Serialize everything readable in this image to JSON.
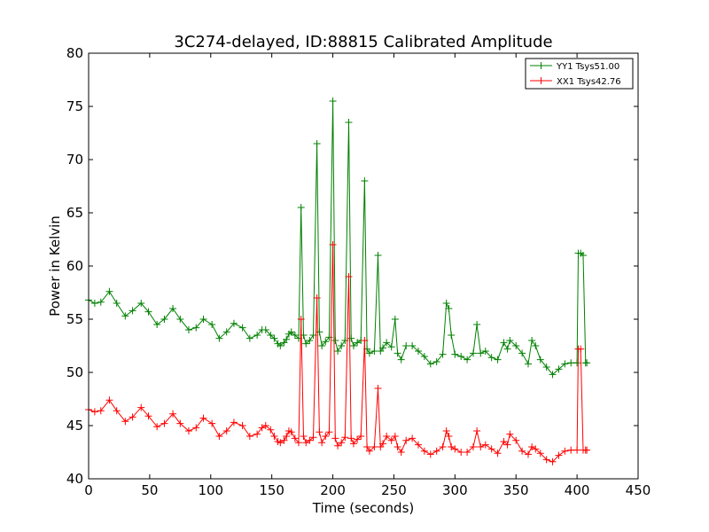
{
  "chart_data": {
    "type": "line",
    "title": "3C274-delayed, ID:88815 Calibrated Amplitude",
    "xlabel": "Time (seconds)",
    "ylabel": "Power in Kelvin",
    "xlim": [
      0,
      450
    ],
    "ylim": [
      40,
      80
    ],
    "xticks": [
      0,
      50,
      100,
      150,
      200,
      250,
      300,
      350,
      400,
      450
    ],
    "yticks": [
      40,
      45,
      50,
      55,
      60,
      65,
      70,
      75,
      80
    ],
    "grid": false,
    "legend_position": "top-right",
    "marker": "+",
    "series": [
      {
        "name": "YY1 Tsys51.00",
        "color": "#008000",
        "x": [
          0,
          5,
          10,
          17,
          23,
          30,
          36,
          43,
          49,
          56,
          62,
          69,
          75,
          82,
          88,
          94,
          101,
          107,
          113,
          119,
          126,
          132,
          138,
          142,
          145,
          149,
          152,
          155,
          157,
          160,
          162,
          164,
          166,
          169,
          172,
          174,
          176,
          178,
          181,
          184,
          187,
          189,
          191,
          194,
          197,
          200,
          202,
          204,
          207,
          210,
          213,
          215,
          217,
          220,
          223,
          226,
          228,
          230,
          234,
          237,
          239,
          241,
          244,
          248,
          251,
          253,
          256,
          260,
          265,
          270,
          275,
          280,
          285,
          290,
          293,
          295,
          297,
          300,
          305,
          310,
          315,
          318,
          321,
          325,
          330,
          335,
          340,
          343,
          345,
          350,
          355,
          360,
          363,
          366,
          370,
          375,
          380,
          385,
          390,
          395,
          400,
          401,
          403,
          405,
          407,
          408
        ],
        "values": [
          56.8,
          56.5,
          56.6,
          57.6,
          56.5,
          55.3,
          55.8,
          56.5,
          55.7,
          54.5,
          55.0,
          56.0,
          55.0,
          54.0,
          54.2,
          55.0,
          54.5,
          53.2,
          53.8,
          54.6,
          54.2,
          53.2,
          53.5,
          54.0,
          54.0,
          53.5,
          53.2,
          52.7,
          52.5,
          52.8,
          53.1,
          53.6,
          53.8,
          53.5,
          53.2,
          65.5,
          53.5,
          52.7,
          53.0,
          53.5,
          71.5,
          53.8,
          52.5,
          52.9,
          53.3,
          75.5,
          53.0,
          52.0,
          52.5,
          53.0,
          73.5,
          53.2,
          52.5,
          52.8,
          53.0,
          68.0,
          52.2,
          51.8,
          52.0,
          61.0,
          52.0,
          52.3,
          52.8,
          52.4,
          55.0,
          51.8,
          51.2,
          52.5,
          52.5,
          52.0,
          51.5,
          50.8,
          51.0,
          51.7,
          56.5,
          56.0,
          53.5,
          51.7,
          51.5,
          51.2,
          51.8,
          54.5,
          51.8,
          52.0,
          51.4,
          51.2,
          52.8,
          52.2,
          53.0,
          52.5,
          51.8,
          50.8,
          53.0,
          52.5,
          51.2,
          50.5,
          49.8,
          50.3,
          50.8,
          50.9,
          50.9,
          61.2,
          61.2,
          61.0,
          50.9,
          50.9
        ]
      },
      {
        "name": "XX1 Tsys42.76",
        "color": "#ff0000",
        "x": [
          0,
          5,
          10,
          17,
          23,
          30,
          36,
          43,
          49,
          56,
          62,
          69,
          75,
          82,
          88,
          94,
          101,
          107,
          113,
          119,
          126,
          132,
          138,
          142,
          145,
          149,
          152,
          155,
          157,
          160,
          162,
          164,
          166,
          169,
          172,
          174,
          176,
          178,
          181,
          184,
          187,
          189,
          191,
          194,
          197,
          200,
          202,
          204,
          207,
          210,
          213,
          215,
          217,
          220,
          223,
          226,
          228,
          230,
          234,
          237,
          239,
          241,
          244,
          248,
          251,
          253,
          256,
          260,
          265,
          270,
          275,
          280,
          285,
          290,
          293,
          295,
          297,
          300,
          305,
          310,
          315,
          318,
          321,
          325,
          330,
          335,
          340,
          343,
          345,
          350,
          355,
          360,
          363,
          366,
          370,
          375,
          380,
          385,
          390,
          395,
          400,
          401,
          403,
          405,
          407,
          408
        ],
        "values": [
          46.5,
          46.3,
          46.4,
          47.4,
          46.4,
          45.4,
          45.8,
          46.7,
          45.9,
          44.9,
          45.2,
          46.1,
          45.2,
          44.5,
          44.8,
          45.7,
          45.2,
          44.0,
          44.5,
          45.3,
          45.0,
          44.0,
          44.2,
          44.8,
          45.0,
          44.6,
          44.0,
          43.5,
          43.4,
          43.6,
          44.0,
          44.5,
          44.4,
          43.8,
          43.4,
          55.0,
          44.0,
          43.4,
          43.6,
          43.9,
          57.0,
          44.4,
          43.4,
          44.0,
          44.4,
          62.0,
          43.8,
          43.1,
          43.4,
          43.9,
          59.0,
          43.8,
          43.3,
          43.7,
          44.0,
          53.0,
          43.0,
          42.6,
          43.0,
          48.5,
          43.0,
          43.3,
          44.0,
          43.6,
          44.0,
          43.0,
          42.5,
          43.6,
          43.8,
          43.2,
          42.6,
          42.3,
          42.6,
          43.0,
          44.5,
          44.0,
          43.0,
          42.8,
          42.5,
          42.5,
          43.0,
          44.5,
          43.0,
          43.2,
          42.8,
          42.4,
          43.5,
          43.2,
          44.2,
          43.6,
          42.6,
          42.3,
          43.0,
          42.8,
          42.4,
          41.8,
          41.6,
          42.2,
          42.6,
          42.7,
          42.7,
          52.2,
          52.2,
          42.7,
          42.7,
          42.7
        ]
      }
    ]
  }
}
